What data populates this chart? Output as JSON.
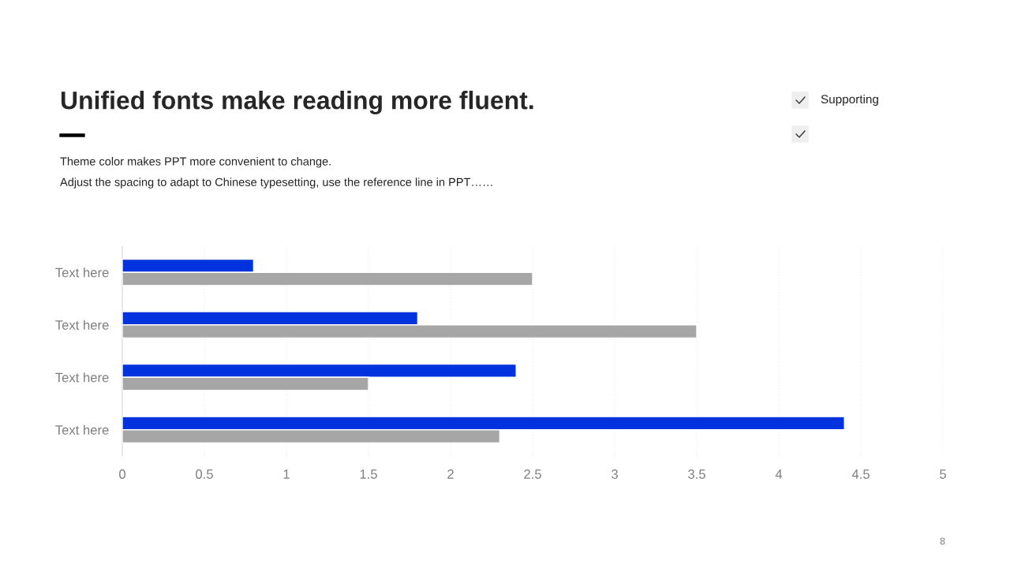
{
  "chart_data": {
    "type": "bar",
    "orientation": "horizontal",
    "title": "Unified fonts make reading more fluent.",
    "subtitle": "Theme color makes PPT more convenient to change.\nAdjust the spacing to adapt to Chinese typesetting, use the reference line in PPT……",
    "categories": [
      "Text here",
      "Text here",
      "Text here",
      "Text here"
    ],
    "series": [
      {
        "color": "#0033dd",
        "values": [
          0.8,
          1.8,
          2.4,
          4.4
        ]
      },
      {
        "color": "#a6a6a6",
        "values": [
          2.5,
          3.5,
          1.5,
          2.3
        ]
      }
    ],
    "xlim": [
      0,
      5
    ],
    "xticks": [
      0,
      0.5,
      1,
      1.5,
      2,
      2.5,
      3,
      3.5,
      4,
      4.5,
      5
    ],
    "grid": "x",
    "annotations": [
      "Supporting",
      "8"
    ]
  }
}
